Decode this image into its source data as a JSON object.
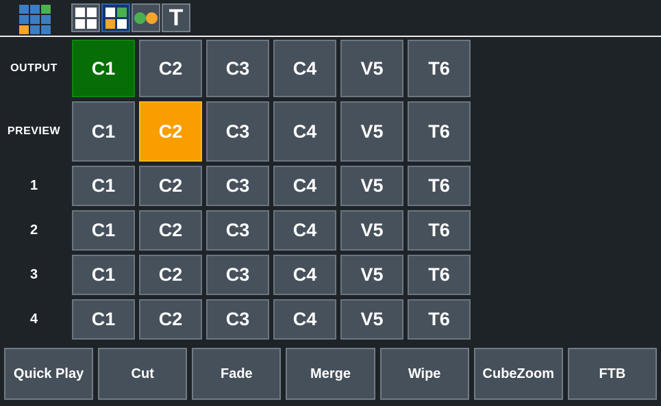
{
  "header": {
    "logo_icon": "app-grid-logo",
    "tools": [
      {
        "name": "grid-white-view",
        "selected": false
      },
      {
        "name": "grid-colored-view",
        "selected": true
      },
      {
        "name": "dots-view",
        "selected": false
      },
      {
        "name": "text-view",
        "selected": false,
        "glyph": "T"
      }
    ]
  },
  "matrix": {
    "row_labels": [
      "OUTPUT",
      "PREVIEW",
      "1",
      "2",
      "3",
      "4"
    ],
    "columns": [
      "C1",
      "C2",
      "C3",
      "C4",
      "V5",
      "T6"
    ],
    "output_active": {
      "cell": "C1",
      "color": "#076D07"
    },
    "preview_active": {
      "cell": "C2",
      "color": "#F99E00"
    }
  },
  "transitions": {
    "buttons": [
      "Quick Play",
      "Cut",
      "Fade",
      "Merge",
      "Wipe",
      "CubeZoom",
      "FTB"
    ]
  },
  "colors": {
    "background": "#1E2328",
    "button": "#47515B",
    "button_border": "#6C7681",
    "program_green": "#076D07",
    "preview_orange": "#F99E00",
    "selected_tool_blue": "#2E61B0",
    "logo_blue": "#3C7EC4",
    "logo_green": "#4CB050",
    "logo_orange": "#F5A529",
    "separator": "#EDEDED",
    "text": "#FFFFFF"
  }
}
